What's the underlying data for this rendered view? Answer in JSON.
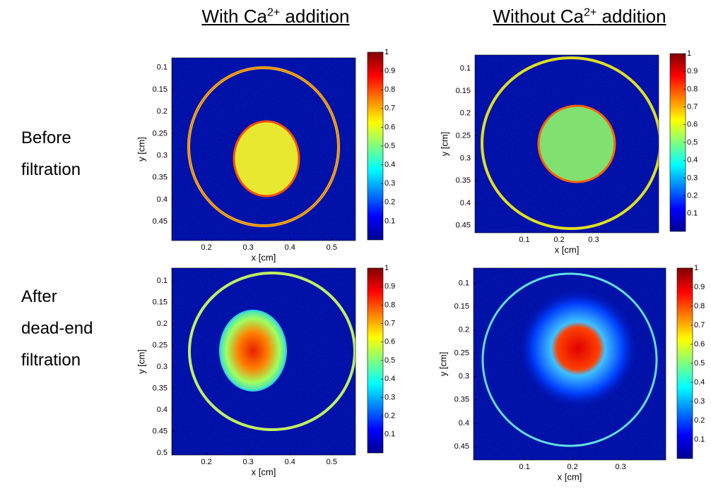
{
  "column_titles": [
    {
      "before": "With Ca",
      "superscript": "2+",
      "after": " addition"
    },
    {
      "before": "Without Ca",
      "superscript": "2+",
      "after": " addition"
    }
  ],
  "row_labels": [
    [
      "Before",
      "filtration"
    ],
    [
      "After",
      "dead-end",
      "filtration"
    ]
  ],
  "chart_data": [
    {
      "type": "heatmap",
      "xlabel": "x [cm]",
      "ylabel": "y [cm]",
      "xlim": [
        0.117,
        0.557
      ],
      "ylim": [
        0.078,
        0.493
      ],
      "yreverse": true,
      "xticks": [
        0.2,
        0.3,
        0.4,
        0.5
      ],
      "yticks": [
        0.1,
        0.15,
        0.2,
        0.25,
        0.3,
        0.35,
        0.4,
        0.45
      ],
      "colorbar": {
        "lim": [
          0,
          1
        ],
        "ticks": [
          0.1,
          0.2,
          0.3,
          0.4,
          0.5,
          0.6,
          0.7,
          0.8,
          0.9,
          1
        ]
      }
    },
    {
      "type": "heatmap",
      "xlabel": "x [cm]",
      "ylabel": "y [cm]",
      "xlim": [
        -0.043,
        0.488
      ],
      "ylim": [
        0.07,
        0.466
      ],
      "yreverse": true,
      "xticks": [
        0.1,
        0.2,
        0.3
      ],
      "yticks": [
        0.1,
        0.15,
        0.2,
        0.25,
        0.3,
        0.35,
        0.4,
        0.45
      ],
      "colorbar": {
        "lim": [
          0,
          1
        ],
        "ticks": [
          0.1,
          0.2,
          0.3,
          0.4,
          0.5,
          0.6,
          0.7,
          0.8,
          0.9,
          1
        ]
      }
    },
    {
      "type": "heatmap",
      "xlabel": "x [cm]",
      "ylabel": "y [cm]",
      "xlim": [
        0.117,
        0.557
      ],
      "ylim": [
        0.07,
        0.505
      ],
      "yreverse": true,
      "xticks": [
        0.2,
        0.3,
        0.4,
        0.5
      ],
      "yticks": [
        0.1,
        0.15,
        0.2,
        0.25,
        0.3,
        0.35,
        0.4,
        0.45,
        0.5
      ],
      "colorbar": {
        "lim": [
          0,
          1
        ],
        "ticks": [
          0.1,
          0.2,
          0.3,
          0.4,
          0.5,
          0.6,
          0.7,
          0.8,
          0.9,
          1
        ]
      }
    },
    {
      "type": "heatmap",
      "xlabel": "x [cm]",
      "ylabel": "y [cm]",
      "xlim": [
        -0.006,
        0.394
      ],
      "ylim": [
        0.067,
        0.479
      ],
      "yreverse": true,
      "xticks": [
        0.1,
        0.2,
        0.3
      ],
      "yticks": [
        0.1,
        0.15,
        0.2,
        0.25,
        0.3,
        0.35,
        0.4,
        0.45
      ],
      "colorbar": {
        "lim": [
          0,
          1
        ],
        "ticks": [
          0.1,
          0.2,
          0.3,
          0.4,
          0.5,
          0.6,
          0.7,
          0.8,
          0.9,
          1
        ]
      }
    }
  ]
}
